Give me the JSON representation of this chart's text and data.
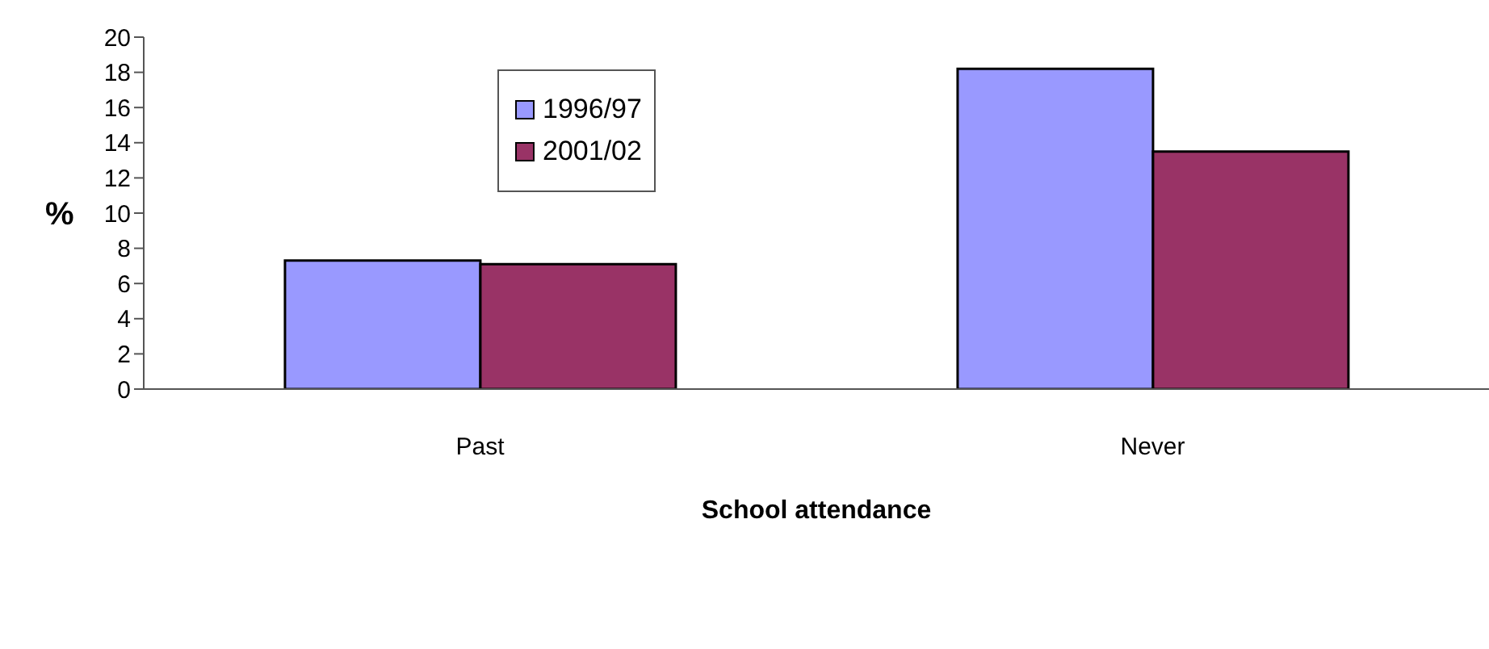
{
  "chart_data": {
    "type": "bar",
    "xlabel": "School attendance",
    "ylabel": "%",
    "categories": [
      "Past",
      "Never"
    ],
    "series": [
      {
        "name": "1996/97",
        "color": "#9999ff",
        "values": [
          7.3,
          18.2
        ]
      },
      {
        "name": "2001/02",
        "color": "#993366",
        "values": [
          7.1,
          13.5
        ]
      }
    ],
    "ylim": [
      0,
      20
    ],
    "yticks": [
      0,
      2,
      4,
      6,
      8,
      10,
      12,
      14,
      16,
      18,
      20
    ],
    "grid": false,
    "legend": "top left"
  }
}
